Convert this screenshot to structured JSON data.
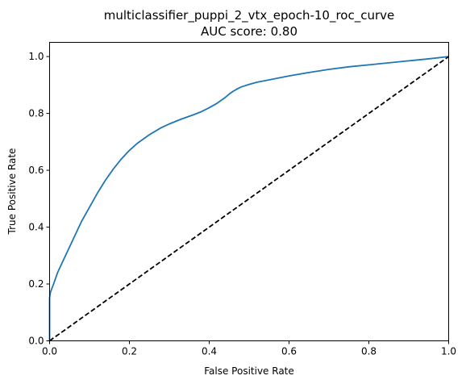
{
  "chart_data": {
    "type": "line",
    "title": "multiclassifier_puppi_2_vtx_epoch-10_roc_curve",
    "subtitle": "AUC score: 0.80",
    "xlabel": "False Positive Rate",
    "ylabel": "True Positive Rate",
    "xlim": [
      0,
      1
    ],
    "ylim": [
      0,
      1.05
    ],
    "xticks": [
      0.0,
      0.2,
      0.4,
      0.6,
      0.8,
      1.0
    ],
    "yticks": [
      0.0,
      0.2,
      0.4,
      0.6,
      0.8,
      1.0
    ],
    "grid": false,
    "series": [
      {
        "color": "#1f77b4",
        "line_style": "solid",
        "x": [
          0.0,
          0.0,
          0.002,
          0.01,
          0.02,
          0.04,
          0.06,
          0.08,
          0.1,
          0.12,
          0.14,
          0.16,
          0.18,
          0.2,
          0.22,
          0.25,
          0.28,
          0.3,
          0.33,
          0.36,
          0.38,
          0.4,
          0.42,
          0.44,
          0.45,
          0.46,
          0.47,
          0.48,
          0.5,
          0.52,
          0.55,
          0.6,
          0.65,
          0.7,
          0.75,
          0.8,
          0.85,
          0.9,
          0.95,
          1.0
        ],
        "y": [
          0.0,
          0.15,
          0.17,
          0.2,
          0.24,
          0.3,
          0.36,
          0.42,
          0.47,
          0.52,
          0.565,
          0.605,
          0.64,
          0.67,
          0.695,
          0.725,
          0.75,
          0.763,
          0.78,
          0.795,
          0.806,
          0.82,
          0.836,
          0.856,
          0.868,
          0.878,
          0.886,
          0.893,
          0.902,
          0.91,
          0.918,
          0.932,
          0.944,
          0.955,
          0.964,
          0.971,
          0.978,
          0.985,
          0.992,
          1.0
        ]
      },
      {
        "color": "#000000",
        "line_style": "dashed",
        "x": [
          0.0,
          1.0
        ],
        "y": [
          0.0,
          1.0
        ]
      }
    ]
  }
}
